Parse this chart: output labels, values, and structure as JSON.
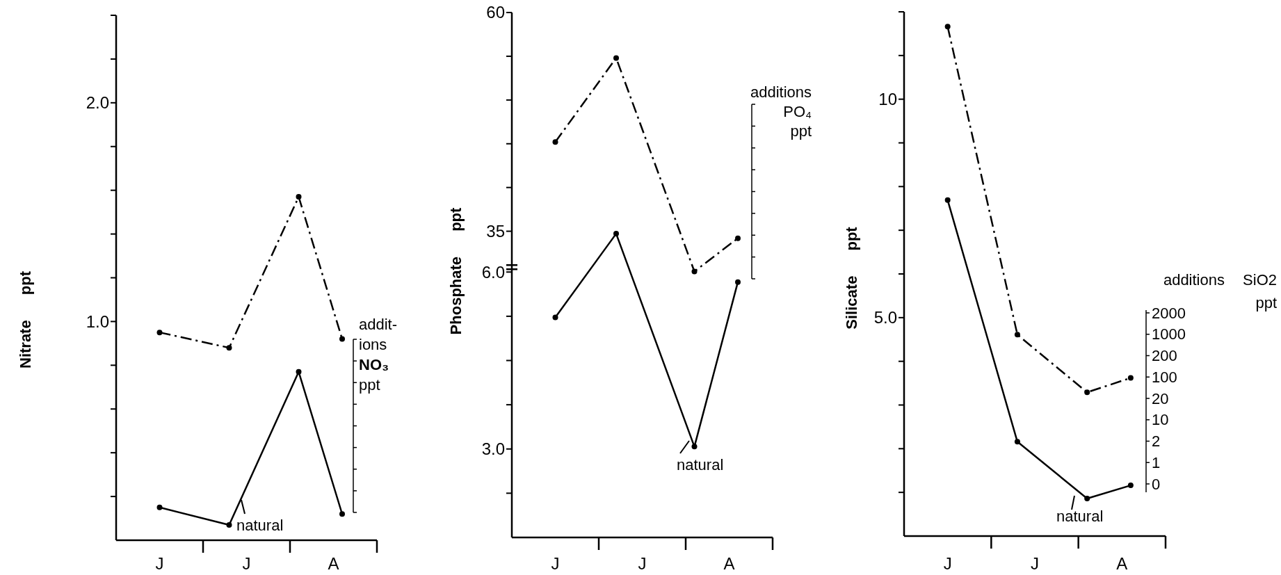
{
  "chart_data": [
    {
      "type": "line",
      "ylabel": "Nitrate ppt",
      "y2label": "addit-\nions\nNO₃\nppt",
      "categories": [
        null,
        null,
        null,
        null,
        null,
        "J",
        null,
        null,
        null,
        null,
        null,
        null,
        null,
        null,
        null,
        "J",
        null,
        null,
        null,
        null,
        null,
        null,
        null,
        null,
        null,
        "A",
        null,
        null,
        null,
        null,
        null
      ],
      "ylim": [
        0,
        2.4
      ],
      "yticks": [
        {
          "value": 0.2,
          "label": null
        },
        {
          "value": 0.4,
          "label": null
        },
        {
          "value": 0.6,
          "label": null
        },
        {
          "value": 0.8,
          "label": null
        },
        {
          "value": 1,
          "label": "1.0"
        },
        {
          "value": 1.2,
          "label": null
        },
        {
          "value": 1.4,
          "label": null
        },
        {
          "value": 1.6,
          "label": null
        },
        {
          "value": 1.8,
          "label": null
        },
        {
          "value": 2,
          "label": "2.0"
        },
        {
          "value": 2.2,
          "label": null
        },
        {
          "value": 2.4,
          "label": null
        }
      ],
      "series": [
        {
          "color": "#000000",
          "line_style": "solid",
          "values": [
            null,
            null,
            null,
            null,
            null,
            0.15,
            null,
            null,
            null,
            null,
            null,
            null,
            null,
            0.07,
            null,
            null,
            null,
            null,
            null,
            null,
            null,
            0.77,
            null,
            null,
            null,
            null,
            0.12,
            null,
            null,
            null,
            null
          ]
        },
        {
          "color": "#000000",
          "line_style": "dashed",
          "values": [
            null,
            null,
            null,
            null,
            null,
            0.95,
            null,
            null,
            null,
            null,
            null,
            null,
            null,
            0.88,
            null,
            null,
            null,
            null,
            null,
            null,
            null,
            1.57,
            null,
            null,
            null,
            null,
            0.92,
            null,
            null,
            null,
            null
          ]
        }
      ],
      "annotations": [
        "natural"
      ],
      "marker": "circle",
      "grid": false
    },
    {
      "type": "line",
      "ylabel": "Phosphate ppt",
      "y2label": "additions\nPO₄\nppt",
      "categories": [
        null,
        null,
        null,
        null,
        null,
        "J",
        null,
        null,
        null,
        null,
        null,
        null,
        null,
        null,
        null,
        "J",
        null,
        null,
        null,
        null,
        null,
        null,
        null,
        null,
        null,
        "A",
        null,
        null,
        null,
        null,
        null
      ],
      "ylim": [
        1.5,
        10.4
      ],
      "yticks": [
        {
          "value": 2.25,
          "label": null
        },
        {
          "value": 3,
          "label": "3.0"
        },
        {
          "value": 3.75,
          "label": null
        },
        {
          "value": 4.5,
          "label": null
        },
        {
          "value": 5.25,
          "label": null
        },
        {
          "value": 6,
          "label": "6.0"
        }
      ],
      "y2lim": [
        0,
        60
      ],
      "y2ticks": [
        35,
        {
          "value": 40,
          "label": null
        },
        {
          "value": 45,
          "label": null
        },
        {
          "value": 50,
          "label": null
        },
        {
          "value": 55,
          "label": null
        },
        60
      ],
      "series": [
        {
          "color": "#000000",
          "line_style": "solid",
          "values": [
            null,
            null,
            null,
            null,
            null,
            5.23,
            null,
            null,
            null,
            null,
            null,
            null,
            6.65,
            null,
            null,
            null,
            null,
            null,
            null,
            null,
            null,
            3.04,
            null,
            null,
            null,
            null,
            5.83,
            null,
            null,
            null,
            null
          ]
        },
        {
          "color": "#000000",
          "line_style": "dashed",
          "axis": "y2",
          "values": [
            null,
            null,
            null,
            null,
            null,
            45.2,
            null,
            null,
            null,
            null,
            null,
            null,
            54.8,
            null,
            null,
            null,
            null,
            null,
            null,
            null,
            null,
            30.4,
            null,
            null,
            null,
            null,
            34.2,
            null,
            null,
            null,
            null
          ]
        }
      ],
      "annotations": [
        "natural"
      ],
      "marker": "circle",
      "grid": false
    },
    {
      "type": "line",
      "ylabel": "Silicate ppt",
      "y2label": "additions SiO2\nppt",
      "categories": [
        null,
        null,
        null,
        null,
        null,
        "J",
        null,
        null,
        null,
        null,
        null,
        null,
        null,
        null,
        null,
        "J",
        null,
        null,
        null,
        null,
        null,
        null,
        null,
        null,
        null,
        "A",
        null,
        null,
        null,
        null,
        null
      ],
      "ylim": [
        0,
        12
      ],
      "yticks": [
        {
          "value": 1,
          "label": null
        },
        {
          "value": 2,
          "label": null
        },
        {
          "value": 3,
          "label": null
        },
        {
          "value": 4,
          "label": null
        },
        {
          "value": 5,
          "label": "5.0"
        },
        {
          "value": 6,
          "label": null
        },
        {
          "value": 7,
          "label": null
        },
        {
          "value": 8,
          "label": null
        },
        {
          "value": 9,
          "label": null
        },
        10,
        {
          "value": 11,
          "label": null
        },
        {
          "value": 12,
          "label": null
        }
      ],
      "series": [
        {
          "color": "#000000",
          "line_style": "solid",
          "values": [
            null,
            null,
            null,
            null,
            null,
            7.69,
            null,
            null,
            null,
            null,
            null,
            null,
            null,
            2.16,
            null,
            null,
            null,
            null,
            null,
            null,
            null,
            0.86,
            null,
            null,
            null,
            null,
            1.16,
            null,
            null,
            null,
            null
          ]
        },
        {
          "color": "#000000",
          "line_style": "dashed",
          "values": [
            null,
            null,
            null,
            null,
            null,
            11.66,
            null,
            null,
            null,
            null,
            null,
            null,
            null,
            4.61,
            null,
            null,
            null,
            null,
            null,
            null,
            null,
            3.29,
            null,
            null,
            null,
            null,
            3.62,
            null,
            null,
            null,
            null
          ]
        }
      ],
      "annotations": [
        "natural",
        "2000",
        "1000",
        "200",
        "100",
        "20",
        "10",
        "2",
        "1",
        "0"
      ],
      "marker": "circle",
      "grid": false
    }
  ]
}
